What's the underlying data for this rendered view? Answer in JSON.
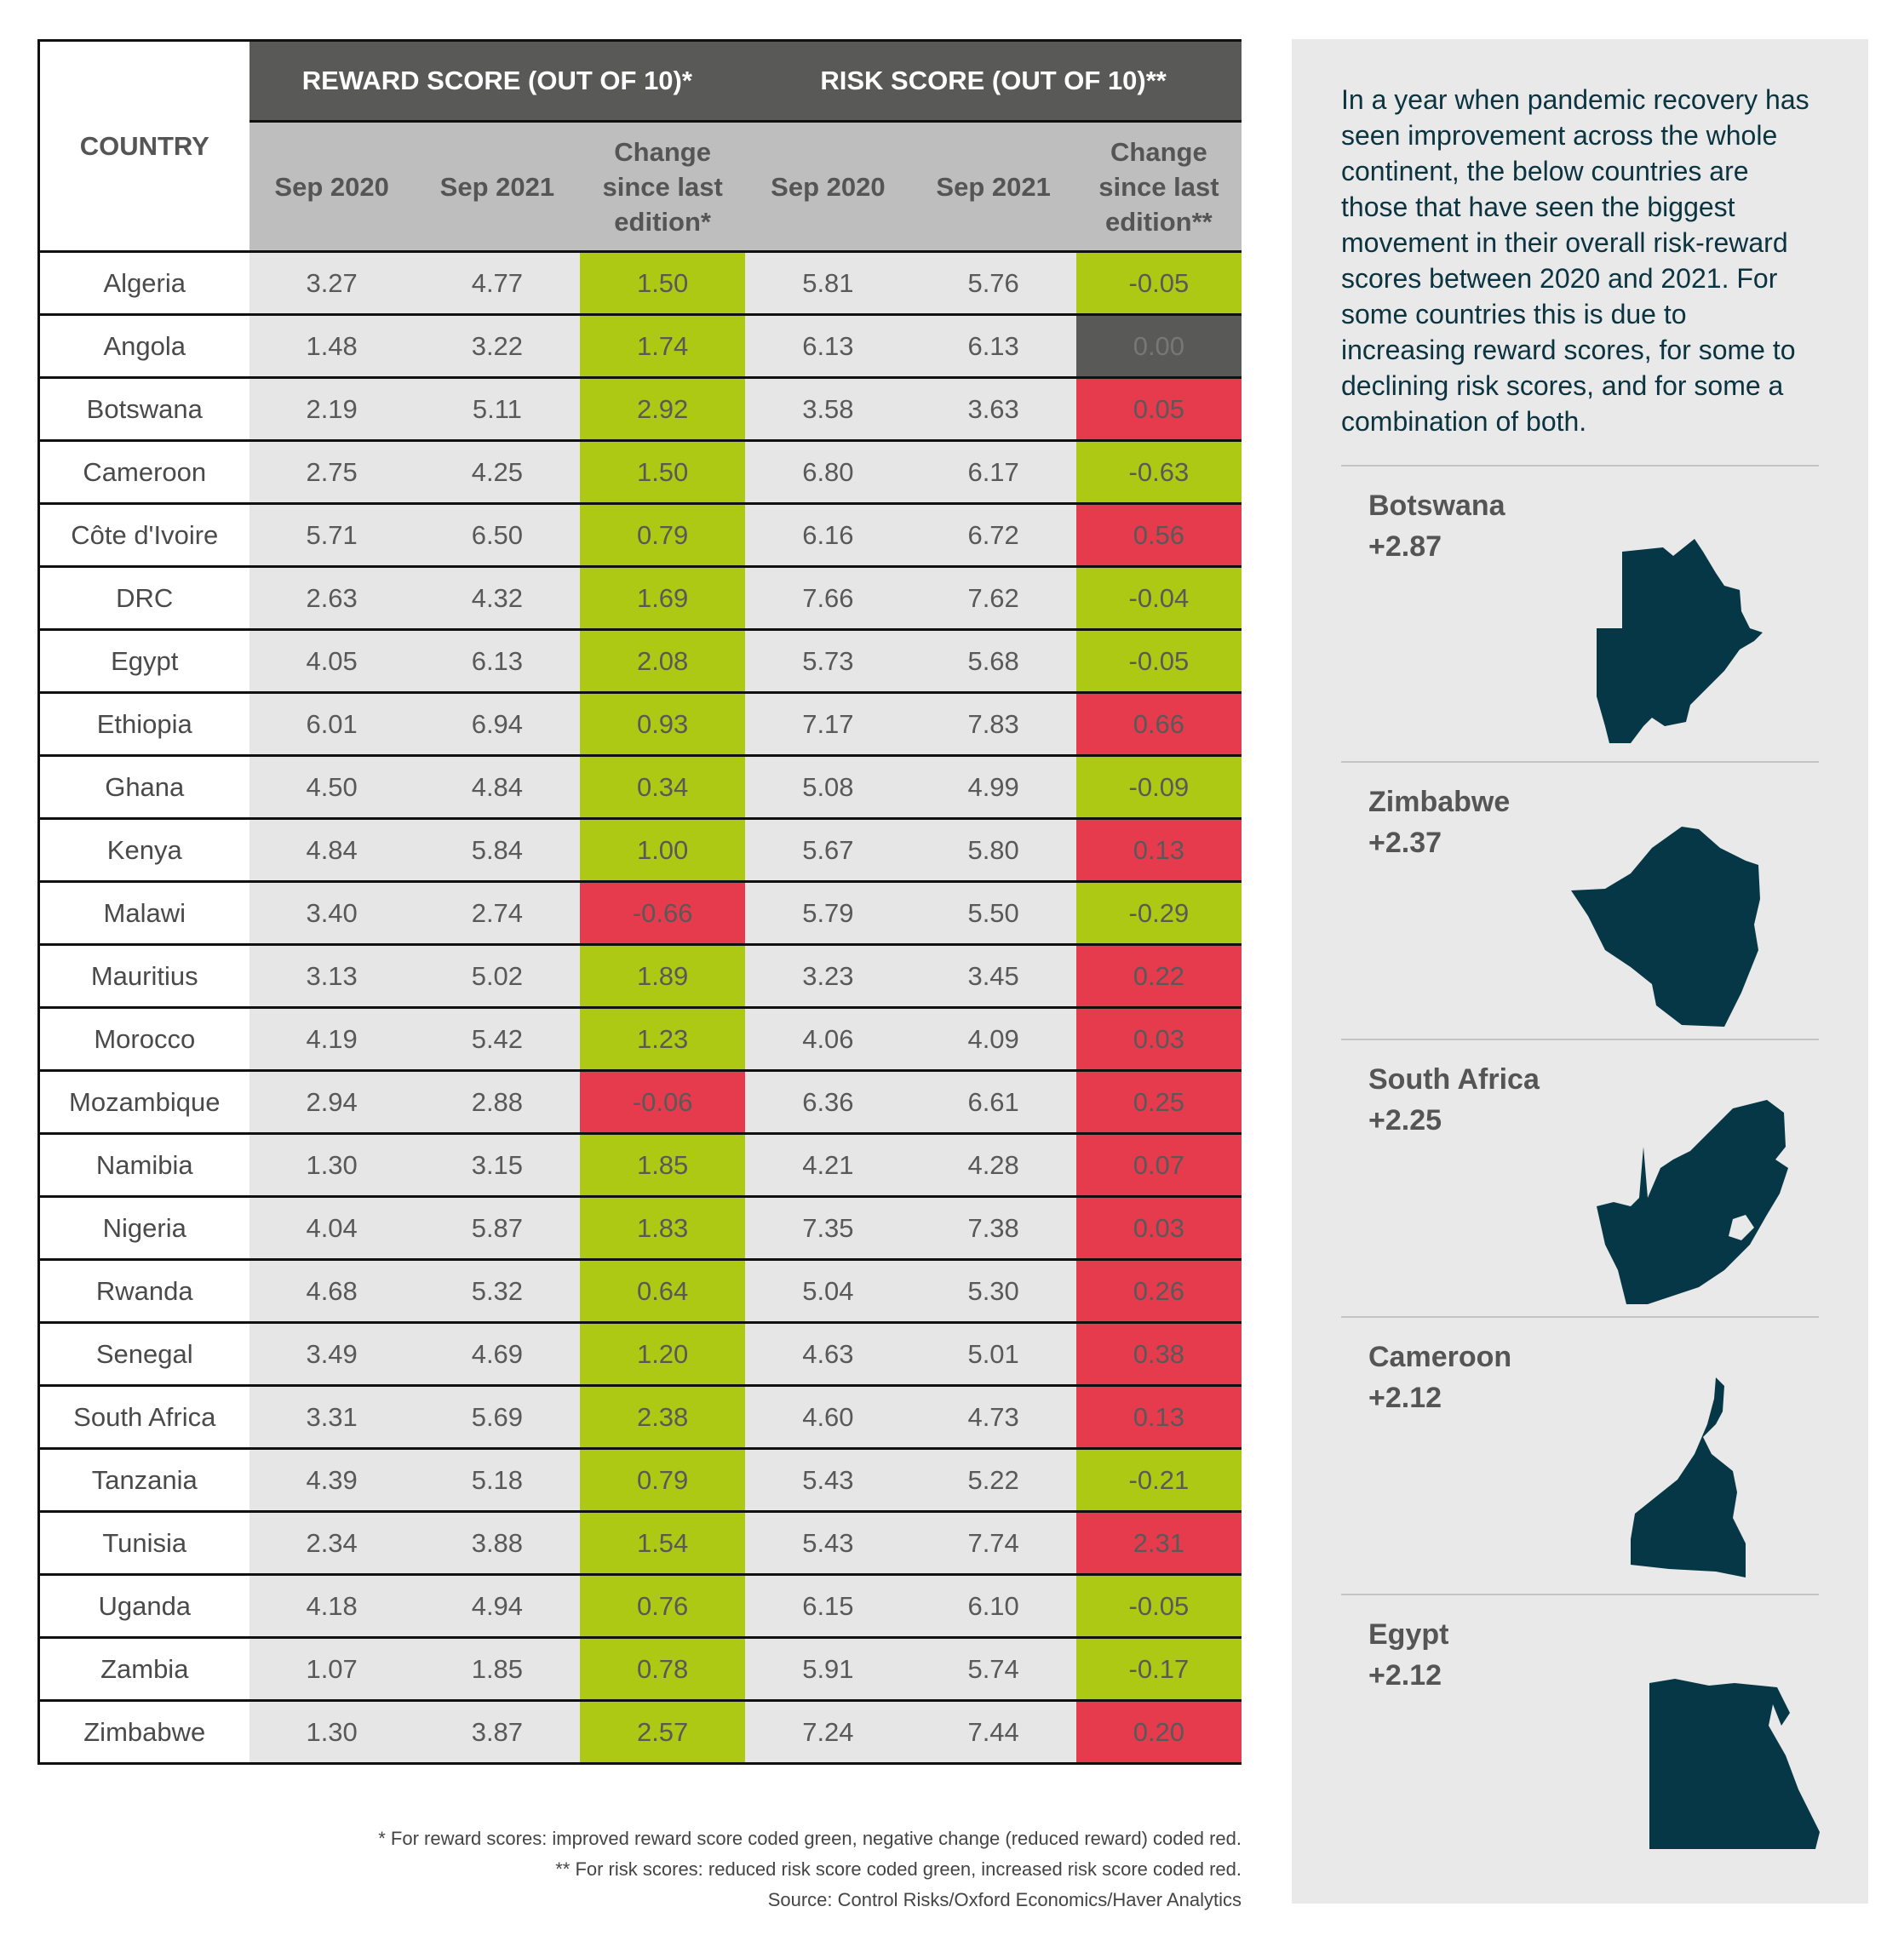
{
  "table": {
    "country_header": "COUNTRY",
    "reward_header": "REWARD SCORE (OUT OF 10)*",
    "risk_header": "RISK SCORE (OUT OF 10)**",
    "sub_headers": [
      "Sep 2020",
      "Sep 2021",
      "Change since last edition*",
      "Sep 2020",
      "Sep 2021",
      "Change since last edition**"
    ],
    "colors": {
      "green": "#adc914",
      "red": "#e63b4c",
      "neutral": "#595958"
    },
    "rows": [
      {
        "country": "Algeria",
        "r20": "3.27",
        "r21": "4.77",
        "rc": "1.50",
        "rcc": "green",
        "k20": "5.81",
        "k21": "5.76",
        "kc": "-0.05",
        "kcc": "green"
      },
      {
        "country": "Angola",
        "r20": "1.48",
        "r21": "3.22",
        "rc": "1.74",
        "rcc": "green",
        "k20": "6.13",
        "k21": "6.13",
        "kc": "0.00",
        "kcc": "neutral"
      },
      {
        "country": "Botswana",
        "r20": "2.19",
        "r21": "5.11",
        "rc": "2.92",
        "rcc": "green",
        "k20": "3.58",
        "k21": "3.63",
        "kc": "0.05",
        "kcc": "red"
      },
      {
        "country": "Cameroon",
        "r20": "2.75",
        "r21": "4.25",
        "rc": "1.50",
        "rcc": "green",
        "k20": "6.80",
        "k21": "6.17",
        "kc": "-0.63",
        "kcc": "green"
      },
      {
        "country": "Côte d'Ivoire",
        "r20": "5.71",
        "r21": "6.50",
        "rc": "0.79",
        "rcc": "green",
        "k20": "6.16",
        "k21": "6.72",
        "kc": "0.56",
        "kcc": "red"
      },
      {
        "country": "DRC",
        "r20": "2.63",
        "r21": "4.32",
        "rc": "1.69",
        "rcc": "green",
        "k20": "7.66",
        "k21": "7.62",
        "kc": "-0.04",
        "kcc": "green"
      },
      {
        "country": "Egypt",
        "r20": "4.05",
        "r21": "6.13",
        "rc": "2.08",
        "rcc": "green",
        "k20": "5.73",
        "k21": "5.68",
        "kc": "-0.05",
        "kcc": "green"
      },
      {
        "country": "Ethiopia",
        "r20": "6.01",
        "r21": "6.94",
        "rc": "0.93",
        "rcc": "green",
        "k20": "7.17",
        "k21": "7.83",
        "kc": "0.66",
        "kcc": "red"
      },
      {
        "country": "Ghana",
        "r20": "4.50",
        "r21": "4.84",
        "rc": "0.34",
        "rcc": "green",
        "k20": "5.08",
        "k21": "4.99",
        "kc": "-0.09",
        "kcc": "green"
      },
      {
        "country": "Kenya",
        "r20": "4.84",
        "r21": "5.84",
        "rc": "1.00",
        "rcc": "green",
        "k20": "5.67",
        "k21": "5.80",
        "kc": "0.13",
        "kcc": "red"
      },
      {
        "country": "Malawi",
        "r20": "3.40",
        "r21": "2.74",
        "rc": "-0.66",
        "rcc": "red",
        "k20": "5.79",
        "k21": "5.50",
        "kc": "-0.29",
        "kcc": "green"
      },
      {
        "country": "Mauritius",
        "r20": "3.13",
        "r21": "5.02",
        "rc": "1.89",
        "rcc": "green",
        "k20": "3.23",
        "k21": "3.45",
        "kc": "0.22",
        "kcc": "red"
      },
      {
        "country": "Morocco",
        "r20": "4.19",
        "r21": "5.42",
        "rc": "1.23",
        "rcc": "green",
        "k20": "4.06",
        "k21": "4.09",
        "kc": "0.03",
        "kcc": "red"
      },
      {
        "country": "Mozambique",
        "r20": "2.94",
        "r21": "2.88",
        "rc": "-0.06",
        "rcc": "red",
        "k20": "6.36",
        "k21": "6.61",
        "kc": "0.25",
        "kcc": "red"
      },
      {
        "country": "Namibia",
        "r20": "1.30",
        "r21": "3.15",
        "rc": "1.85",
        "rcc": "green",
        "k20": "4.21",
        "k21": "4.28",
        "kc": "0.07",
        "kcc": "red"
      },
      {
        "country": "Nigeria",
        "r20": "4.04",
        "r21": "5.87",
        "rc": "1.83",
        "rcc": "green",
        "k20": "7.35",
        "k21": "7.38",
        "kc": "0.03",
        "kcc": "red"
      },
      {
        "country": "Rwanda",
        "r20": "4.68",
        "r21": "5.32",
        "rc": "0.64",
        "rcc": "green",
        "k20": "5.04",
        "k21": "5.30",
        "kc": "0.26",
        "kcc": "red"
      },
      {
        "country": "Senegal",
        "r20": "3.49",
        "r21": "4.69",
        "rc": "1.20",
        "rcc": "green",
        "k20": "4.63",
        "k21": "5.01",
        "kc": "0.38",
        "kcc": "red"
      },
      {
        "country": "South Africa",
        "r20": "3.31",
        "r21": "5.69",
        "rc": "2.38",
        "rcc": "green",
        "k20": "4.60",
        "k21": "4.73",
        "kc": "0.13",
        "kcc": "red"
      },
      {
        "country": "Tanzania",
        "r20": "4.39",
        "r21": "5.18",
        "rc": "0.79",
        "rcc": "green",
        "k20": "5.43",
        "k21": "5.22",
        "kc": "-0.21",
        "kcc": "green"
      },
      {
        "country": "Tunisia",
        "r20": "2.34",
        "r21": "3.88",
        "rc": "1.54",
        "rcc": "green",
        "k20": "5.43",
        "k21": "7.74",
        "kc": "2.31",
        "kcc": "red"
      },
      {
        "country": "Uganda",
        "r20": "4.18",
        "r21": "4.94",
        "rc": "0.76",
        "rcc": "green",
        "k20": "6.15",
        "k21": "6.10",
        "kc": "-0.05",
        "kcc": "green"
      },
      {
        "country": "Zambia",
        "r20": "1.07",
        "r21": "1.85",
        "rc": "0.78",
        "rcc": "green",
        "k20": "5.91",
        "k21": "5.74",
        "kc": "-0.17",
        "kcc": "green"
      },
      {
        "country": "Zimbabwe",
        "r20": "1.30",
        "r21": "3.87",
        "rc": "2.57",
        "rcc": "green",
        "k20": "7.24",
        "k21": "7.44",
        "kc": "0.20",
        "kcc": "red"
      }
    ]
  },
  "notes": {
    "reward": "* For reward scores: improved reward score coded green, negative change (reduced reward) coded red.",
    "risk": "** For risk scores: reduced risk score coded green, increased risk score coded red.",
    "source": "Source: Control Risks/Oxford Economics/Haver Analytics"
  },
  "panel": {
    "intro": "In a year when pandemic recovery has seen improvement across the whole continent, the below countries are those that have seen the biggest movement in their overall risk-reward scores between 2020 and 2021. For some countries this is due to increasing reward scores, for some to declining risk scores, and for some a combination of both.",
    "map_color": "#063746",
    "highlights": [
      {
        "country": "Botswana",
        "change": "+2.87"
      },
      {
        "country": "Zimbabwe",
        "change": "+2.37"
      },
      {
        "country": "South Africa",
        "change": "+2.25"
      },
      {
        "country": "Cameroon",
        "change": "+2.12"
      },
      {
        "country": "Egypt",
        "change": "+2.12"
      }
    ]
  },
  "chart_data": {
    "type": "table",
    "title": "",
    "columns": [
      "Country",
      "Reward Sep 2020",
      "Reward Sep 2021",
      "Reward change",
      "Risk Sep 2020",
      "Risk Sep 2021",
      "Risk change"
    ]
  }
}
